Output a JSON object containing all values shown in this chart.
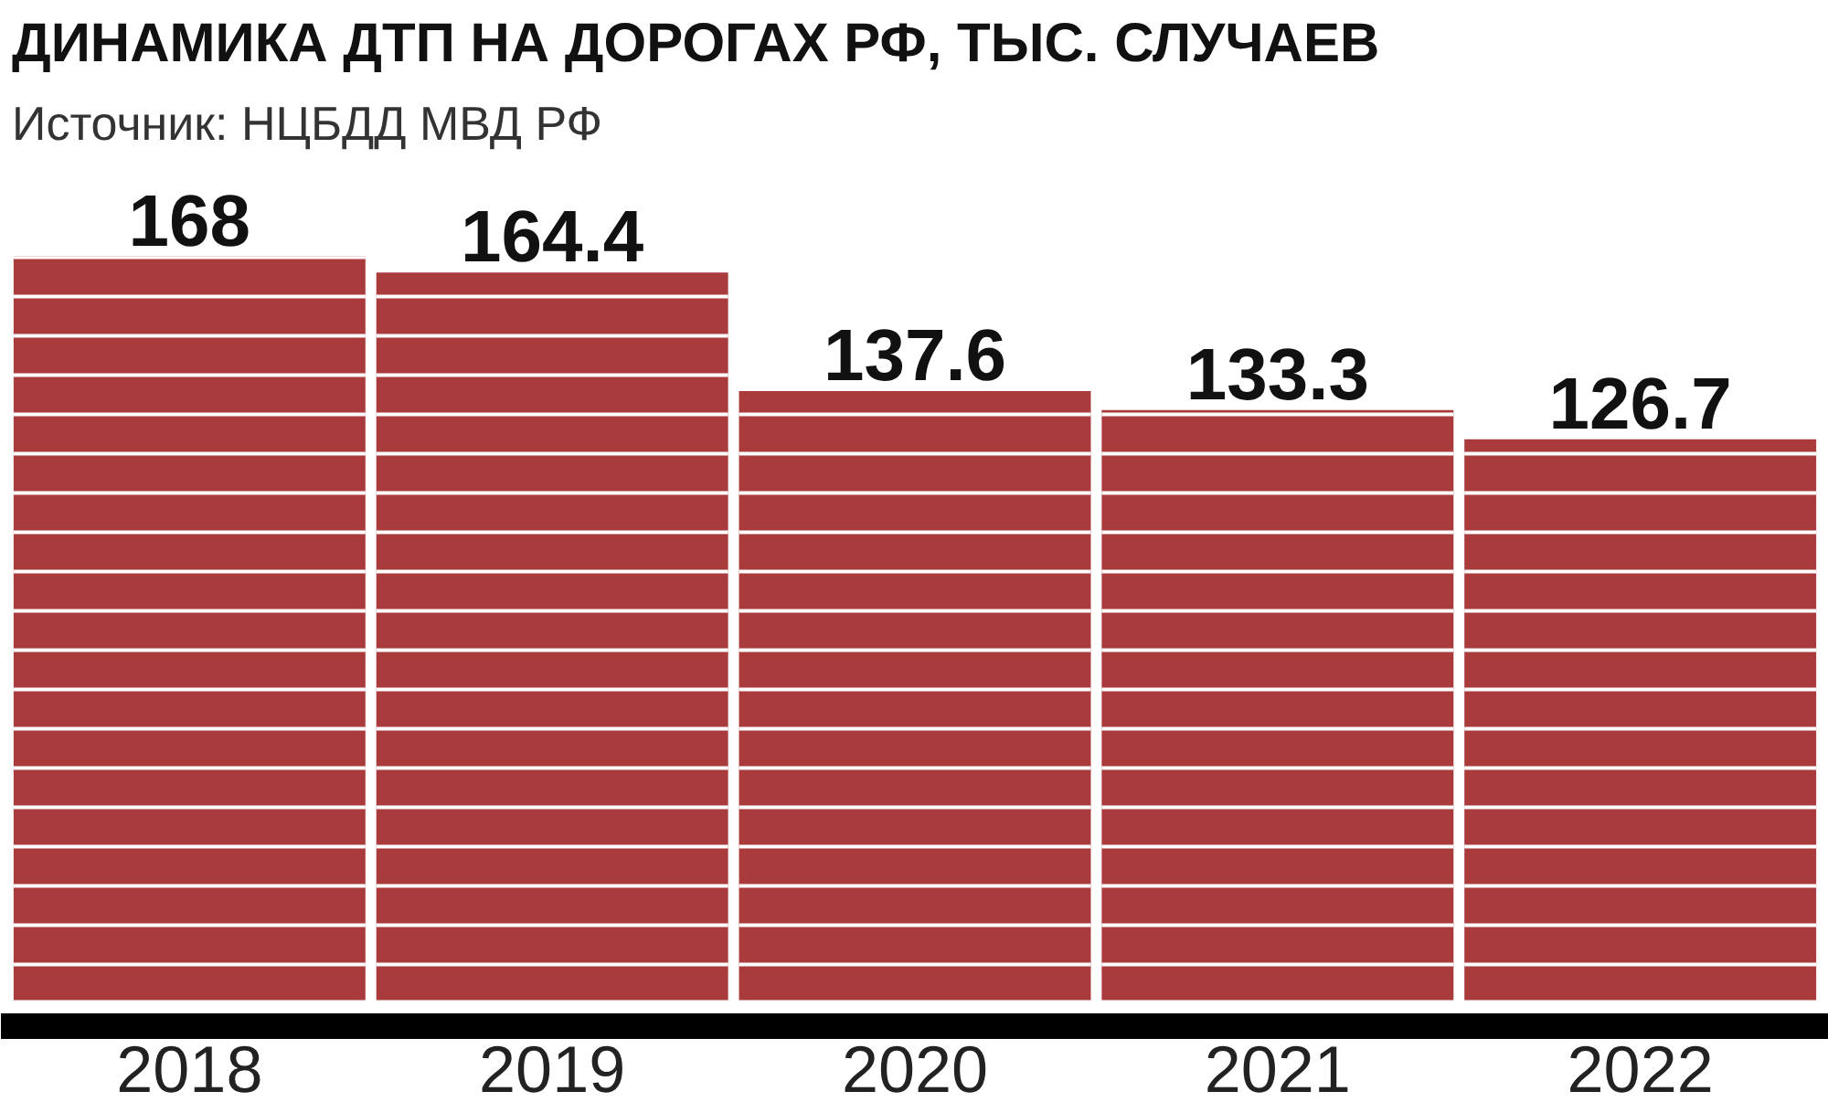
{
  "chart_data": {
    "type": "bar",
    "title": "ДИНАМИКА ДТП НА ДОРОГАХ РФ, ТЫС. СЛУЧАЕВ",
    "subtitle": "Источник:  НЦБДД МВД РФ",
    "categories": [
      "2018",
      "2019",
      "2020",
      "2021",
      "2022"
    ],
    "values": [
      168,
      164.4,
      137.6,
      133.3,
      126.7
    ],
    "color": "#a93b3c",
    "data_labels": true,
    "grid": false
  }
}
